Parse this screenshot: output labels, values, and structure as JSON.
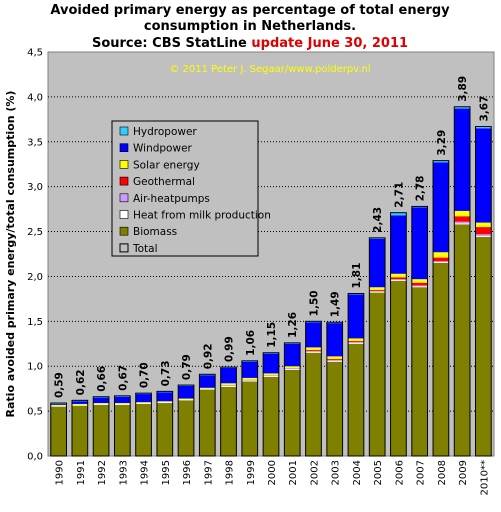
{
  "title_lines": [
    "Avoided primary energy as percentage of total energy",
    "consumption in Netherlands."
  ],
  "source_label": "Source: CBS StatLine ",
  "update_label": "update June 30, 2011",
  "credit": "© 2011 Peter J. Segaar/www.polderpv.nl",
  "colors": {
    "plot_bg": "#c0c0c0",
    "Biomass": "#808000",
    "Heat from milk production": "#ffffff",
    "Air-heatpumps": "#cc99ff",
    "Geothermal": "#ff0000",
    "Solar energy": "#ffff00",
    "Windpower": "#0000ff",
    "Hydropower": "#33ccff",
    "title_red": "#e00000",
    "credit": "#ffff00"
  },
  "chart_data": {
    "type": "bar",
    "stacked": true,
    "ylabel": "Ratio avoided primary energy/total consumption (%)",
    "ylim": [
      0,
      4.5
    ],
    "yticks": [
      "0,0",
      "0,5",
      "1,0",
      "1,5",
      "2,0",
      "2,5",
      "3,0",
      "3,5",
      "4,0",
      "4,5"
    ],
    "grid": true,
    "legend_position": "top-left",
    "legend": [
      "Hydropower",
      "Windpower",
      "Solar energy",
      "Geothermal",
      "Air-heatpumps",
      "Heat from milk production",
      "Biomass",
      "Total"
    ],
    "categories": [
      "1990",
      "1991",
      "1992",
      "1993",
      "1994",
      "1995",
      "1996",
      "1997",
      "1998",
      "1999",
      "2000",
      "2001",
      "2002",
      "2003",
      "2004",
      "2005",
      "2006",
      "2007",
      "2008",
      "2009",
      "2010**"
    ],
    "totals": [
      "0,59",
      "0,62",
      "0,66",
      "0,67",
      "0,70",
      "0,73",
      "0,79",
      "0,92",
      "0,99",
      "1,06",
      "1,15",
      "1,26",
      "1,50",
      "1,49",
      "1,81",
      "2,43",
      "2,71",
      "2,78",
      "3,29",
      "3,89",
      "3,67"
    ],
    "series": [
      {
        "name": "Biomass",
        "values": [
          0.55,
          0.56,
          0.57,
          0.57,
          0.58,
          0.59,
          0.62,
          0.74,
          0.77,
          0.83,
          0.88,
          0.96,
          1.15,
          1.05,
          1.25,
          1.82,
          1.95,
          1.88,
          2.15,
          2.58,
          2.44
        ]
      },
      {
        "name": "Heat from milk production",
        "values": [
          0.01,
          0.01,
          0.01,
          0.01,
          0.01,
          0.01,
          0.01,
          0.01,
          0.01,
          0.01,
          0.01,
          0.01,
          0.01,
          0.01,
          0.01,
          0.01,
          0.01,
          0.01,
          0.01,
          0.01,
          0.01
        ]
      },
      {
        "name": "Air-heatpumps",
        "values": [
          0,
          0,
          0,
          0,
          0,
          0,
          0,
          0,
          0.01,
          0.01,
          0.01,
          0.01,
          0.01,
          0.01,
          0.01,
          0.01,
          0.01,
          0.01,
          0.01,
          0.02,
          0.02
        ]
      },
      {
        "name": "Geothermal",
        "values": [
          0,
          0,
          0,
          0,
          0,
          0,
          0,
          0,
          0,
          0,
          0,
          0,
          0.01,
          0.01,
          0.01,
          0.01,
          0.02,
          0.03,
          0.04,
          0.06,
          0.08
        ]
      },
      {
        "name": "Solar energy",
        "values": [
          0.01,
          0.01,
          0.01,
          0.01,
          0.01,
          0.01,
          0.01,
          0.01,
          0.02,
          0.02,
          0.02,
          0.02,
          0.03,
          0.03,
          0.03,
          0.03,
          0.04,
          0.04,
          0.06,
          0.06,
          0.05
        ]
      },
      {
        "name": "Windpower",
        "values": [
          0.01,
          0.03,
          0.06,
          0.07,
          0.09,
          0.1,
          0.14,
          0.14,
          0.17,
          0.18,
          0.22,
          0.25,
          0.28,
          0.37,
          0.49,
          0.54,
          0.65,
          0.8,
          1.0,
          1.14,
          1.05
        ]
      },
      {
        "name": "Hydropower",
        "values": [
          0.01,
          0.01,
          0.01,
          0.01,
          0.01,
          0.01,
          0.01,
          0.01,
          0.01,
          0.01,
          0.01,
          0.01,
          0.01,
          0.01,
          0.01,
          0.01,
          0.03,
          0.01,
          0.02,
          0.02,
          0.02
        ]
      }
    ]
  }
}
